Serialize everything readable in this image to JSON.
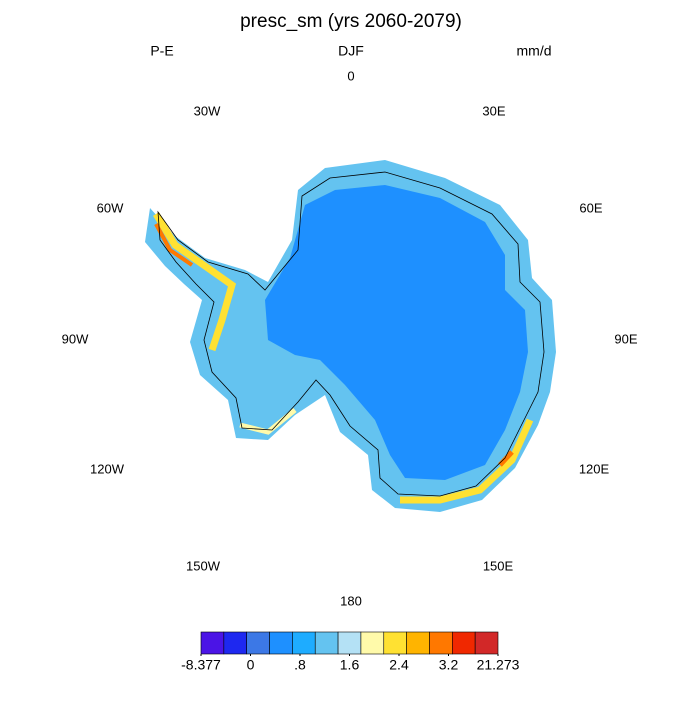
{
  "title": "presc_sm (yrs 2060-2079)",
  "left_label": "P-E",
  "center_label": "DJF",
  "right_label": "mm/d",
  "longitude_labels": [
    "0",
    "30E",
    "60E",
    "90E",
    "120E",
    "150E",
    "180",
    "150W",
    "120W",
    "90W",
    "60W",
    "30W"
  ],
  "colorbar": {
    "colors": [
      "#4b14e6",
      "#1e28f0",
      "#3c78e6",
      "#1e90ff",
      "#1eacff",
      "#64c3f0",
      "#b4e1f5",
      "#fffaaa",
      "#ffe132",
      "#ffb400",
      "#ff7800",
      "#f02800",
      "#d22828"
    ],
    "ticks": [
      -8.377,
      0,
      {
        "value": 0.8,
        "label": ".8"
      },
      1.6,
      2.4,
      3.2,
      21.273
    ]
  }
}
